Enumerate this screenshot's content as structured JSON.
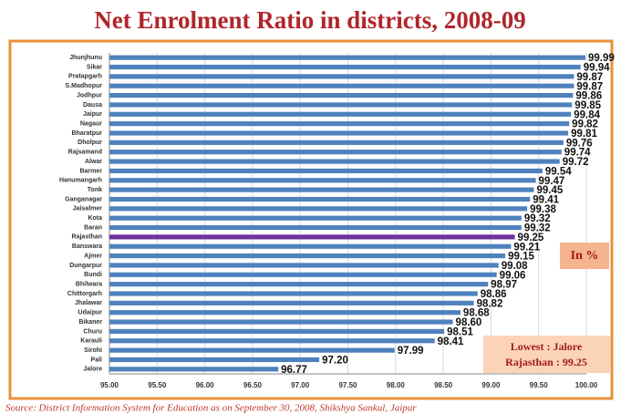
{
  "chart_data": {
    "type": "hbar",
    "title": "Net Enrolment Ratio in districts, 2008-09",
    "categories": [
      "Jhunjhunu",
      "Sikar",
      "Pratapgarh",
      "S.Madhopur",
      "Jodhpur",
      "Dausa",
      "Jaipur",
      "Nagaur",
      "Bharatpur",
      "Dholpur",
      "Rajsamand",
      "Alwar",
      "Barmer",
      "Hanumangarh",
      "Tonk",
      "Ganganagar",
      "Jaisalmer",
      "Kota",
      "Baran",
      "Rajasthan",
      "Banswara",
      "Ajmer",
      "Dungarpur",
      "Bundi",
      "Bhilwara",
      "Chittorgarh",
      "Jhalawar",
      "Udaipur",
      "Bikaner",
      "Churu",
      "Karauli",
      "Sirohi",
      "Pali",
      "Jalore"
    ],
    "values": [
      99.99,
      99.94,
      99.87,
      99.87,
      99.86,
      99.85,
      99.84,
      99.82,
      99.81,
      99.76,
      99.74,
      99.72,
      99.54,
      99.47,
      99.45,
      99.41,
      99.38,
      99.32,
      99.32,
      99.25,
      99.21,
      99.15,
      99.08,
      99.06,
      98.97,
      98.86,
      98.82,
      98.68,
      98.6,
      98.51,
      98.41,
      97.99,
      97.2,
      96.77
    ],
    "value_labels": [
      "99.99",
      "99.94",
      "99.87",
      "99.87",
      "99.86",
      "99.85",
      "99.84",
      "99.82",
      "99.81",
      "99.76",
      "99.74",
      "99.72",
      "99.54",
      "99.47",
      "99.45",
      "99.41",
      "99.38",
      "99.32",
      "99.32",
      "99.25",
      "99.21",
      "99.15",
      "99.08",
      "99.06",
      "98.97",
      "98.86",
      "98.82",
      "98.68",
      "98.60",
      "98.51",
      "98.41",
      "97.99",
      "97.20",
      "96.77"
    ],
    "colors": [
      "#4f81bd",
      "#4f81bd",
      "#4f81bd",
      "#4f81bd",
      "#4f81bd",
      "#4f81bd",
      "#4f81bd",
      "#4f81bd",
      "#4f81bd",
      "#4f81bd",
      "#4f81bd",
      "#4f81bd",
      "#4f81bd",
      "#4f81bd",
      "#4f81bd",
      "#4f81bd",
      "#4f81bd",
      "#4f81bd",
      "#4f81bd",
      "#7030a0",
      "#4f81bd",
      "#4f81bd",
      "#4f81bd",
      "#4f81bd",
      "#4f81bd",
      "#4f81bd",
      "#4f81bd",
      "#4f81bd",
      "#4f81bd",
      "#4f81bd",
      "#4f81bd",
      "#4f81bd",
      "#4f81bd",
      "#4f81bd"
    ],
    "xlim": [
      95,
      100
    ],
    "xticks": [
      {
        "value": 95,
        "label": "95.00"
      },
      {
        "value": 95.5,
        "label": "95.50"
      },
      {
        "value": 96,
        "label": "96.00"
      },
      {
        "value": 96.5,
        "label": "96.50"
      },
      {
        "value": 97,
        "label": "97.00"
      },
      {
        "value": 97.5,
        "label": "97.50"
      },
      {
        "value": 98,
        "label": "98.00"
      },
      {
        "value": 98.5,
        "label": "98.50"
      },
      {
        "value": 99,
        "label": "99.00"
      },
      {
        "value": 99.5,
        "label": "99.50"
      },
      {
        "value": 100,
        "label": "100.00"
      }
    ],
    "grid": true,
    "annotations": [
      "In %",
      "Lowest : Jalore",
      "Rajasthan : 99.25"
    ],
    "source": "Source: District Information System for Education as on September 30, 2008, Shikshya Sankul, Jaipur"
  }
}
